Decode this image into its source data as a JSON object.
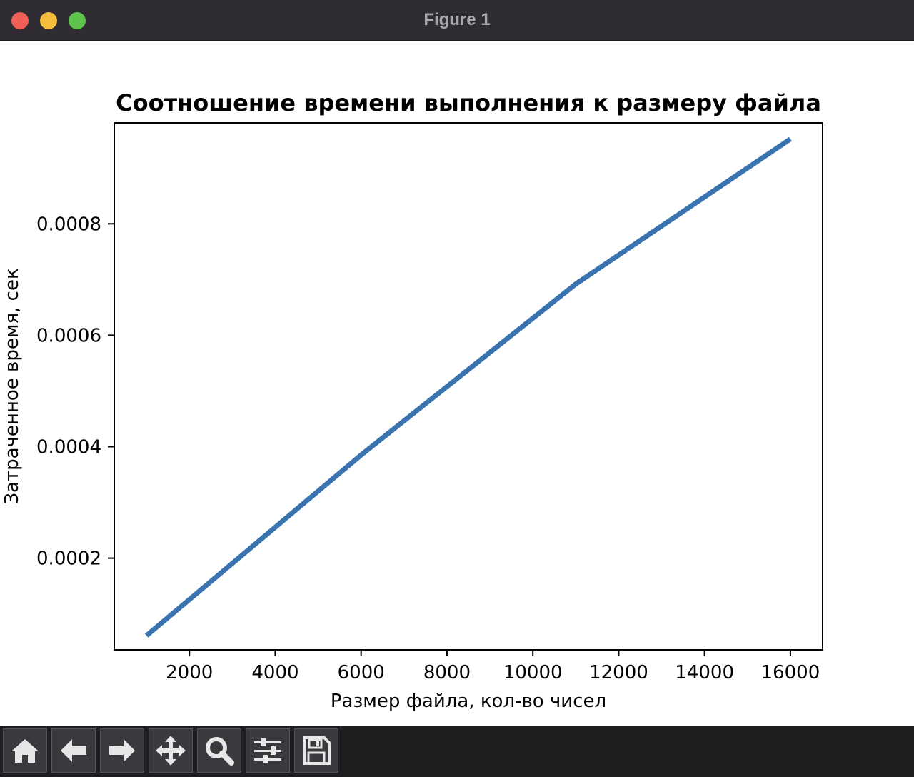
{
  "window": {
    "title": "Figure 1"
  },
  "toolbar": {
    "buttons": [
      {
        "name": "home-button",
        "icon": "home-icon"
      },
      {
        "name": "back-button",
        "icon": "arrow-left-icon"
      },
      {
        "name": "forward-button",
        "icon": "arrow-right-icon"
      },
      {
        "name": "pan-button",
        "icon": "move-icon"
      },
      {
        "name": "zoom-button",
        "icon": "search-icon"
      },
      {
        "name": "configure-subplots-button",
        "icon": "sliders-icon"
      },
      {
        "name": "save-button",
        "icon": "save-icon"
      }
    ]
  },
  "chart_data": {
    "type": "line",
    "title": "Соотношение времени выполнения к размеру файла",
    "xlabel": "Размер файла, кол-во чисел",
    "ylabel": "Затраченное время, сек",
    "xlim": [
      250,
      16750
    ],
    "ylim": [
      3.55e-05,
      0.000981
    ],
    "xticks": [
      2000,
      4000,
      6000,
      8000,
      10000,
      12000,
      14000,
      16000
    ],
    "xtick_labels": [
      "2000",
      "4000",
      "6000",
      "8000",
      "10000",
      "12000",
      "14000",
      "16000"
    ],
    "yticks": [
      0.0002,
      0.0004,
      0.0006,
      0.0008
    ],
    "ytick_labels": [
      "0.0002",
      "0.0004",
      "0.0006",
      "0.0008"
    ],
    "grid": false,
    "legend": "none",
    "series": [
      {
        "color": "#3a74b0",
        "x": [
          1000,
          6000,
          11000,
          16000
        ],
        "y": [
          6.1e-05,
          0.000385,
          0.000692,
          0.000952
        ]
      }
    ]
  }
}
